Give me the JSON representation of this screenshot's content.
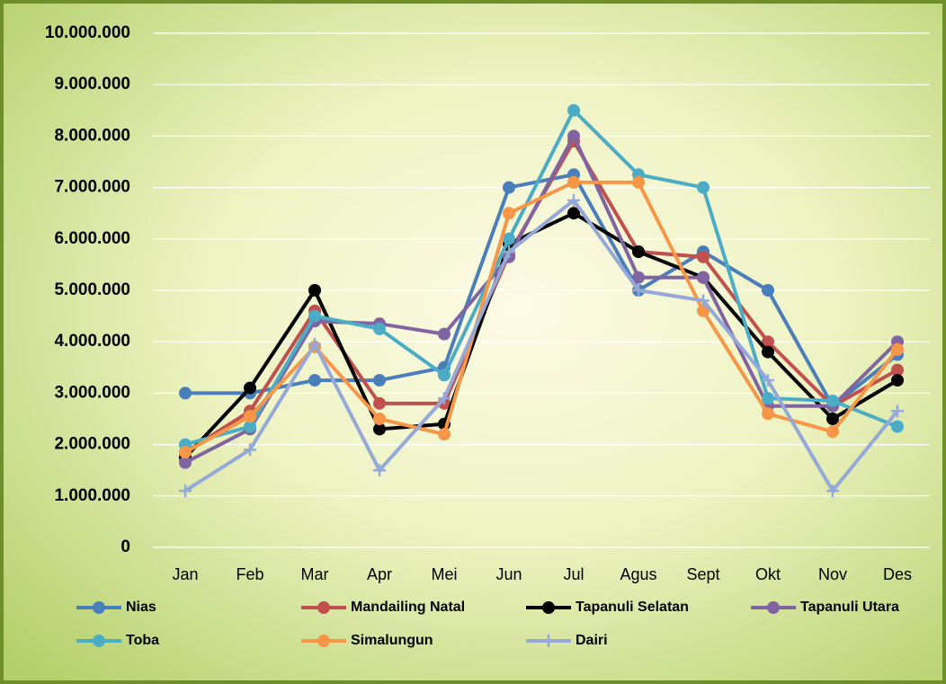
{
  "chart_data": {
    "type": "line",
    "categories": [
      "Jan",
      "Feb",
      "Mar",
      "Apr",
      "Mei",
      "Jun",
      "Jul",
      "Agus",
      "Sept",
      "Okt",
      "Nov",
      "Des"
    ],
    "series": [
      {
        "name": "Nias",
        "color": "#4a7ebb",
        "marker": "circle",
        "values": [
          3000000,
          3000000,
          3250000,
          3250000,
          3500000,
          7000000,
          7250000,
          5000000,
          5750000,
          5000000,
          2750000,
          3750000
        ]
      },
      {
        "name": "Mandailing Natal",
        "color": "#c0504d",
        "marker": "circle",
        "values": [
          1850000,
          2650000,
          4600000,
          2800000,
          2800000,
          5700000,
          7900000,
          5750000,
          5650000,
          4000000,
          2750000,
          3450000
        ]
      },
      {
        "name": "Tapanuli Selatan",
        "color": "#000000",
        "marker": "circle",
        "values": [
          1750000,
          3100000,
          5000000,
          2300000,
          2400000,
          5900000,
          6500000,
          5750000,
          5250000,
          3800000,
          2500000,
          3250000
        ]
      },
      {
        "name": "Tapanuli Utara",
        "color": "#8064a2",
        "marker": "circle",
        "values": [
          1650000,
          2300000,
          4400000,
          4350000,
          4150000,
          5650000,
          8000000,
          5250000,
          5250000,
          2750000,
          2750000,
          4000000
        ]
      },
      {
        "name": "Toba",
        "color": "#4bacc6",
        "marker": "circle",
        "values": [
          2000000,
          2350000,
          4500000,
          4250000,
          3350000,
          6000000,
          8500000,
          7250000,
          7000000,
          2900000,
          2850000,
          2350000
        ]
      },
      {
        "name": "Simalungun",
        "color": "#f79646",
        "marker": "circle",
        "values": [
          1850000,
          2550000,
          3900000,
          2500000,
          2200000,
          6500000,
          7100000,
          7100000,
          4600000,
          2600000,
          2250000,
          3850000
        ]
      },
      {
        "name": "Dairi",
        "color": "#95a9d8",
        "marker": "plus",
        "values": [
          1100000,
          1900000,
          3950000,
          1500000,
          2900000,
          5750000,
          6750000,
          5000000,
          4800000,
          3250000,
          1100000,
          2650000
        ]
      }
    ],
    "ylim": [
      0,
      10000000
    ],
    "yticks": [
      0,
      {
        "value": 1000000,
        "label": "1.000.000"
      },
      {
        "value": 2000000,
        "label": "2.000.000"
      },
      {
        "value": 3000000,
        "label": "3.000.000"
      },
      {
        "value": 4000000,
        "label": "4.000.000"
      },
      {
        "value": 5000000,
        "label": "5.000.000"
      },
      {
        "value": 6000000,
        "label": "6.000.000"
      },
      {
        "value": 7000000,
        "label": "7.000.000"
      },
      {
        "value": 8000000,
        "label": "8.000.000"
      },
      {
        "value": 9000000,
        "label": "9.000.000"
      },
      {
        "value": 10000000,
        "label": "10.000.000"
      }
    ],
    "grid": true
  }
}
